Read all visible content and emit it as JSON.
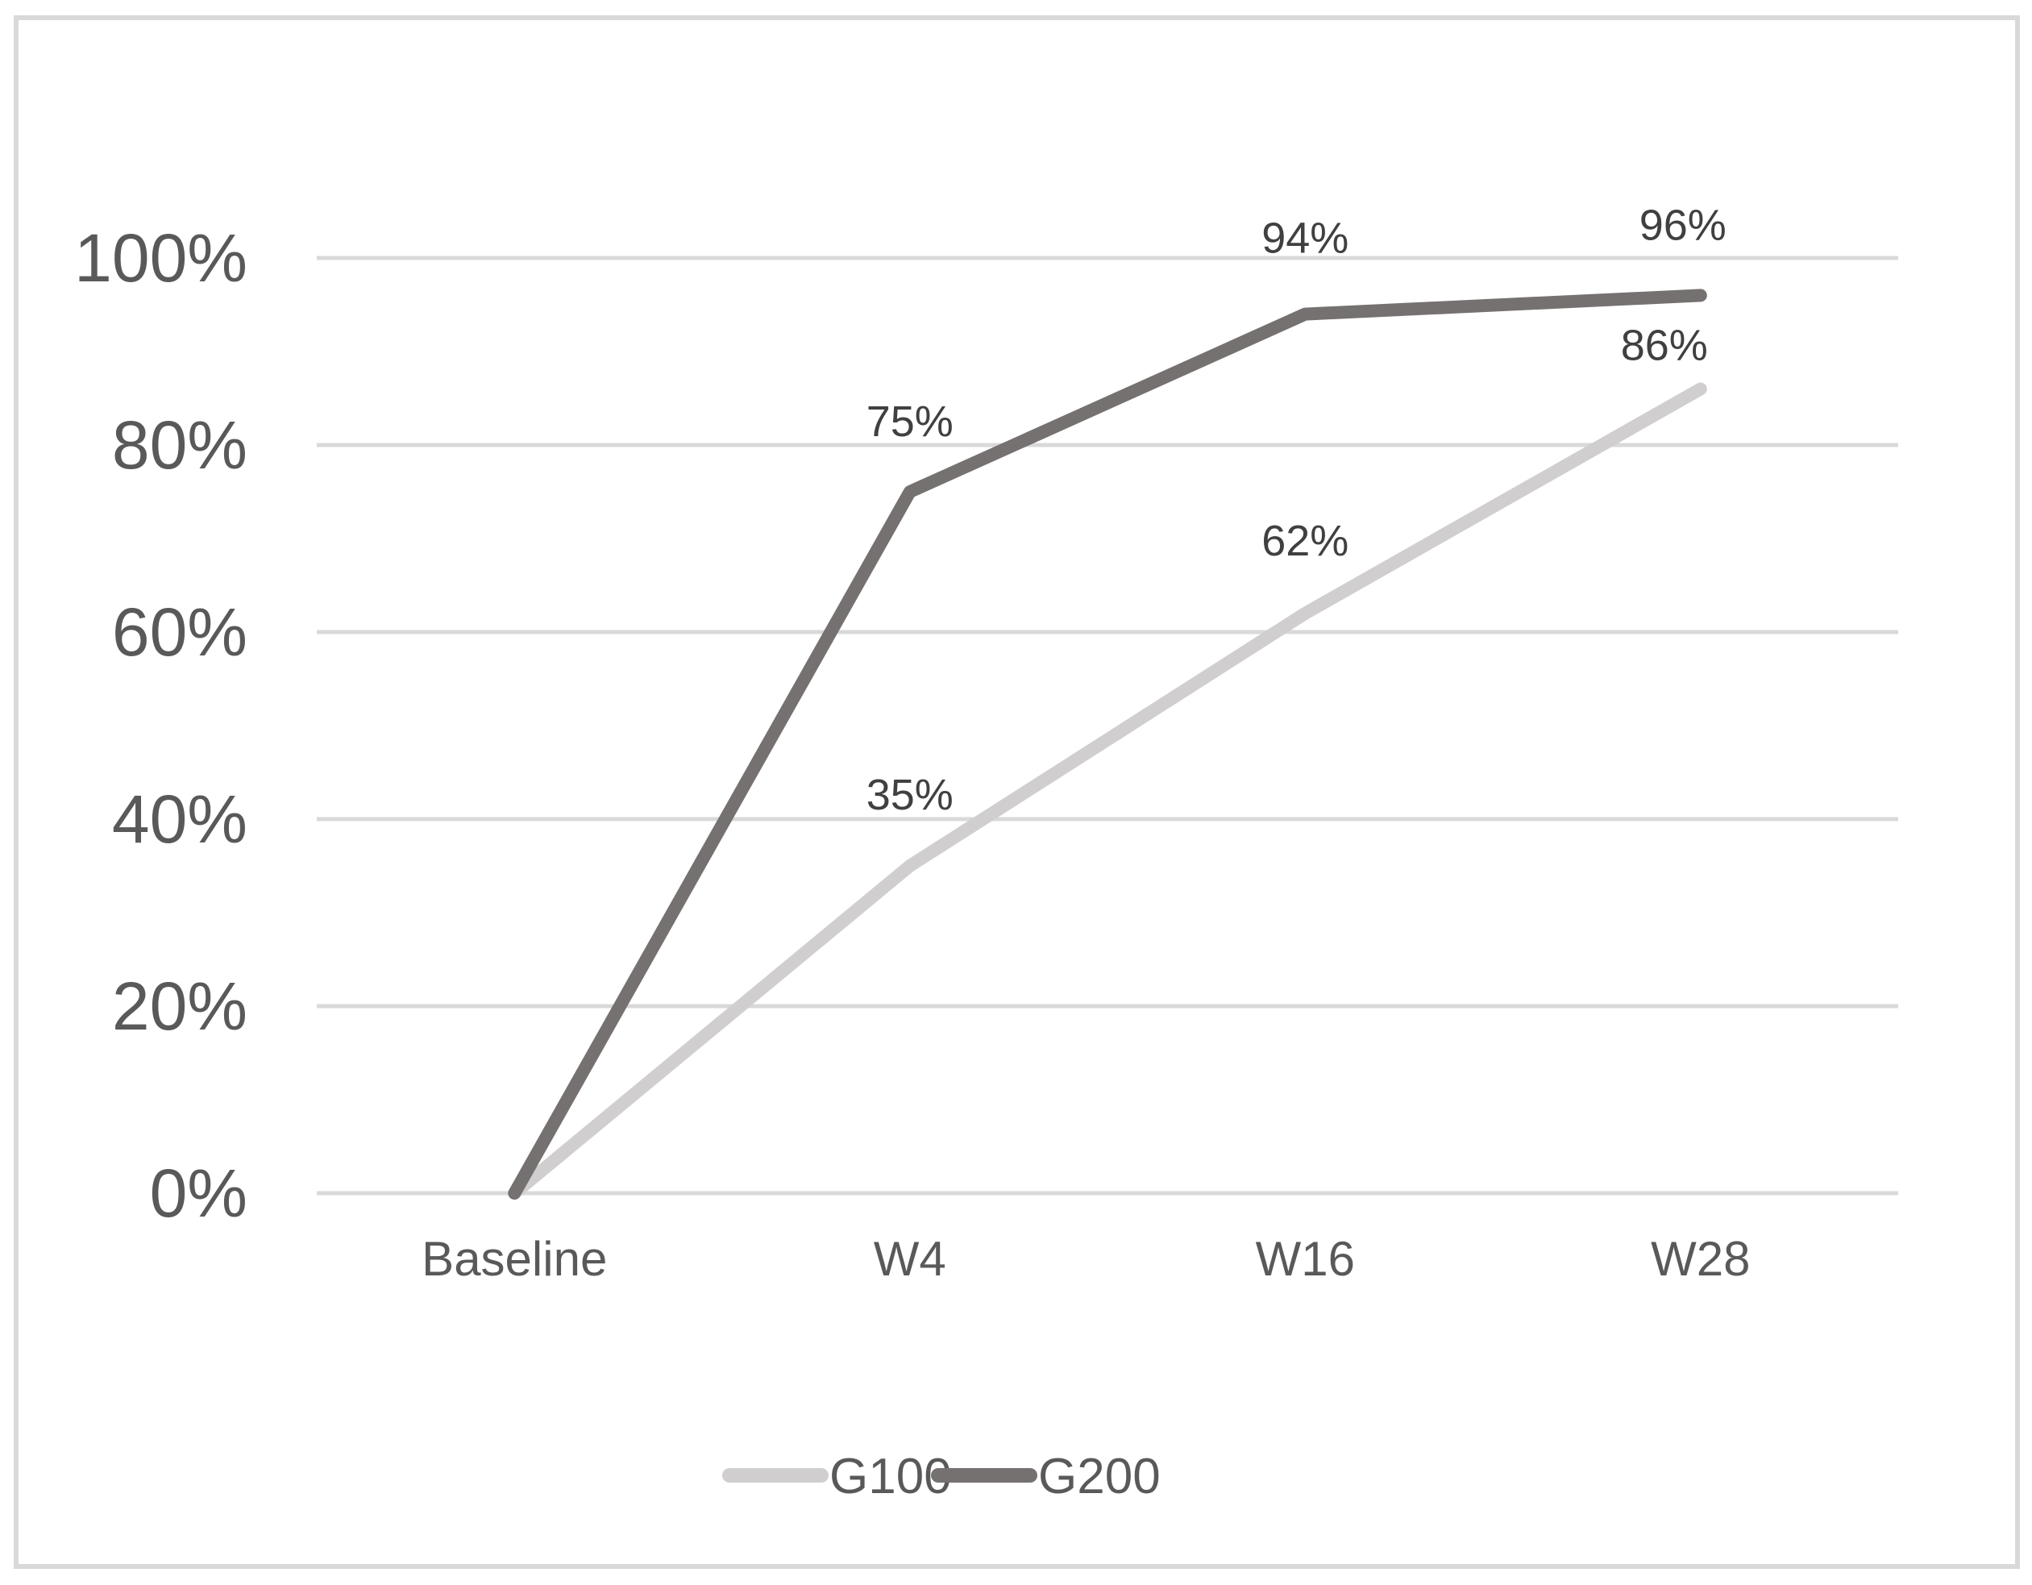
{
  "chart_data": {
    "type": "line",
    "title": "",
    "xlabel": "",
    "ylabel": "",
    "categories": [
      "Baseline",
      "W4",
      "W16",
      "W28"
    ],
    "series": [
      {
        "name": "G100",
        "values": [
          0,
          35,
          62,
          86
        ],
        "labels": [
          "",
          "35%",
          "62%",
          "86%"
        ],
        "color": "#d0cece"
      },
      {
        "name": "G200",
        "values": [
          0,
          75,
          94,
          96
        ],
        "labels": [
          "",
          "75%",
          "94%",
          "96%"
        ],
        "color": "#767171"
      }
    ],
    "y_axis": {
      "min": 0,
      "max": 100,
      "step": 20,
      "tick_labels": [
        "0%",
        "20%",
        "40%",
        "60%",
        "80%",
        "100%"
      ]
    },
    "grid": true,
    "legend_position": "bottom",
    "legend_items": [
      "G100",
      "G200"
    ],
    "colors": {
      "gridline": "#d9d9d9",
      "axis_tick_text": "#595959",
      "data_label_text": "#404040",
      "figure_border": "#d9d9d9",
      "background": "#ffffff"
    }
  }
}
